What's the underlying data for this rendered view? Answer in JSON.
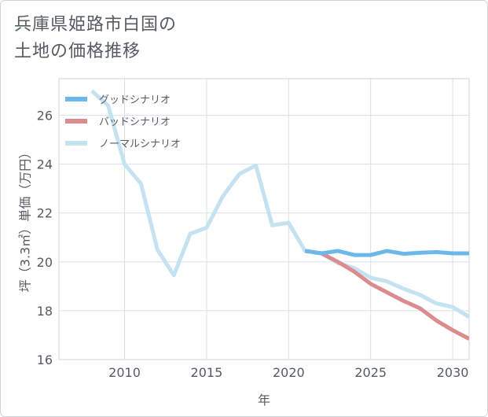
{
  "chart_data": {
    "type": "line",
    "title": "兵庫県姫路市白国の\n土地の価格推移",
    "xlabel": "年",
    "ylabel": "坪（3.3㎡）単価（万円）",
    "xlim": [
      2006,
      2031
    ],
    "ylim": [
      16,
      27.5
    ],
    "x_ticks": [
      2010,
      2015,
      2020,
      2025,
      2030
    ],
    "y_ticks": [
      16,
      18,
      20,
      22,
      24,
      26
    ],
    "grid": true,
    "legend_position": "top-left",
    "series": [
      {
        "name": "グッドシナリオ",
        "color": "#6cb8ea",
        "x": [
          2021,
          2022,
          2023,
          2024,
          2025,
          2026,
          2027,
          2028,
          2029,
          2030,
          2031
        ],
        "values": [
          20.45,
          20.35,
          20.45,
          20.28,
          20.28,
          20.45,
          20.33,
          20.37,
          20.4,
          20.35,
          20.35
        ]
      },
      {
        "name": "バッドシナリオ",
        "color": "#dc8c8f",
        "x": [
          2021,
          2022,
          2023,
          2024,
          2025,
          2026,
          2027,
          2028,
          2029,
          2030,
          2031
        ],
        "values": [
          20.45,
          20.35,
          20.0,
          19.6,
          19.1,
          18.75,
          18.4,
          18.1,
          17.6,
          17.2,
          16.85
        ]
      },
      {
        "name": "ノーマルシナリオ",
        "color": "#c5e2f1",
        "x": [
          2008,
          2009,
          2010,
          2011,
          2012,
          2013,
          2014,
          2015,
          2016,
          2017,
          2018,
          2019,
          2020,
          2021,
          2022,
          2023,
          2024,
          2025,
          2026,
          2027,
          2028,
          2029,
          2030,
          2031
        ],
        "values": [
          27.0,
          26.4,
          24.0,
          23.2,
          20.5,
          19.45,
          21.15,
          21.4,
          22.7,
          23.6,
          23.95,
          21.5,
          21.6,
          20.45,
          20.35,
          19.95,
          19.75,
          19.35,
          19.2,
          18.9,
          18.65,
          18.3,
          18.15,
          17.75
        ]
      }
    ]
  }
}
